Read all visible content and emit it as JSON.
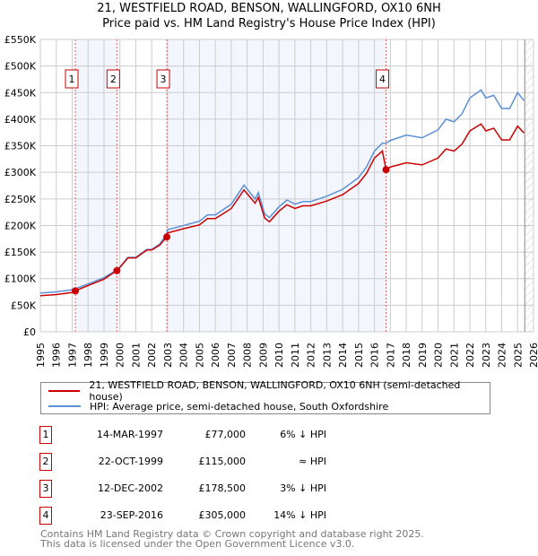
{
  "title": "21, WESTFIELD ROAD, BENSON, WALLINGFORD, OX10 6NH",
  "subtitle": "Price paid vs. HM Land Registry's House Price Index (HPI)",
  "chart_data": {
    "type": "line",
    "xlim": [
      1995,
      2026
    ],
    "ylim": [
      0,
      550000
    ],
    "yticks": [
      {
        "v": 0,
        "l": "£0"
      },
      {
        "v": 50000,
        "l": "£50K"
      },
      {
        "v": 100000,
        "l": "£100K"
      },
      {
        "v": 150000,
        "l": "£150K"
      },
      {
        "v": 200000,
        "l": "£200K"
      },
      {
        "v": 250000,
        "l": "£250K"
      },
      {
        "v": 300000,
        "l": "£300K"
      },
      {
        "v": 350000,
        "l": "£350K"
      },
      {
        "v": 400000,
        "l": "£400K"
      },
      {
        "v": 450000,
        "l": "£450K"
      },
      {
        "v": 500000,
        "l": "£500K"
      },
      {
        "v": 550000,
        "l": "£550K"
      }
    ],
    "xticks": [
      "1995",
      "1996",
      "1997",
      "1998",
      "1999",
      "2000",
      "2001",
      "2002",
      "2003",
      "2004",
      "2005",
      "2006",
      "2007",
      "2008",
      "2009",
      "2010",
      "2011",
      "2012",
      "2013",
      "2014",
      "2015",
      "2016",
      "2017",
      "2018",
      "2019",
      "2020",
      "2021",
      "2022",
      "2023",
      "2024",
      "2025",
      "2026"
    ],
    "grid": true,
    "x": [
      1995,
      1996,
      1997,
      1997.2,
      1998,
      1999,
      1999.8,
      2000,
      2000.5,
      2001,
      2001.7,
      2002,
      2002.5,
      2002.95,
      2003,
      2004,
      2005,
      2005.5,
      2006,
      2007,
      2007.8,
      2008.5,
      2008.7,
      2009.1,
      2009.4,
      2010,
      2010.5,
      2011,
      2011.5,
      2012,
      2013,
      2014,
      2015,
      2015.5,
      2016,
      2016.5,
      2016.73,
      2017,
      2018,
      2019,
      2020,
      2020.5,
      2021,
      2021.5,
      2022,
      2022.7,
      2023,
      2023.5,
      2024,
      2024.5,
      2025,
      2025.4
    ],
    "series": [
      {
        "name": "21, WESTFIELD ROAD, BENSON, WALLINGFORD, OX10 6NH (semi-detached house)",
        "color": "#cc0000",
        "values": [
          68,
          70,
          74,
          77,
          87,
          99,
          115,
          121,
          139,
          139,
          154,
          154,
          163,
          178.5,
          186,
          194,
          201,
          213,
          213,
          232,
          267,
          242,
          253,
          214,
          207,
          227,
          239,
          232,
          237,
          237,
          246,
          258,
          279,
          298,
          327,
          340,
          305,
          310,
          318,
          314,
          327,
          344,
          340,
          353,
          378,
          391,
          378,
          383,
          361,
          361,
          387,
          374
        ]
      },
      {
        "name": "HPI: Average price, semi-detached house, South Oxfordshire",
        "color": "#5b8fd6",
        "values": [
          73,
          75,
          79,
          81,
          90,
          102,
          116,
          122,
          140,
          140,
          155,
          155,
          165,
          184,
          192,
          200,
          208,
          220,
          220,
          240,
          276,
          250,
          262,
          222,
          215,
          235,
          248,
          240,
          245,
          245,
          255,
          268,
          290,
          310,
          340,
          355,
          355,
          360,
          370,
          365,
          380,
          400,
          395,
          410,
          440,
          455,
          440,
          445,
          420,
          420,
          450,
          435
        ]
      }
    ],
    "value_unit": "£ thousands",
    "sales": [
      {
        "label": "1",
        "x": 1997.2,
        "date": "14-MAR-1997",
        "price": "£77,000",
        "value": 77,
        "hpi": "6% ↓ HPI"
      },
      {
        "label": "2",
        "x": 1999.81,
        "date": "22-OCT-1999",
        "price": "£115,000",
        "value": 115,
        "hpi": "≈ HPI"
      },
      {
        "label": "3",
        "x": 2002.95,
        "date": "12-DEC-2002",
        "price": "£178,500",
        "value": 178.5,
        "hpi": "3% ↓ HPI"
      },
      {
        "label": "4",
        "x": 2016.73,
        "date": "23-SEP-2016",
        "price": "£305,000",
        "value": 305,
        "hpi": "14% ↓ HPI"
      }
    ],
    "forecast_start": 2025.45,
    "legend_position": "below"
  },
  "footer": [
    "Contains HM Land Registry data © Crown copyright and database right 2025.",
    "This data is licensed under the Open Government Licence v3.0."
  ]
}
